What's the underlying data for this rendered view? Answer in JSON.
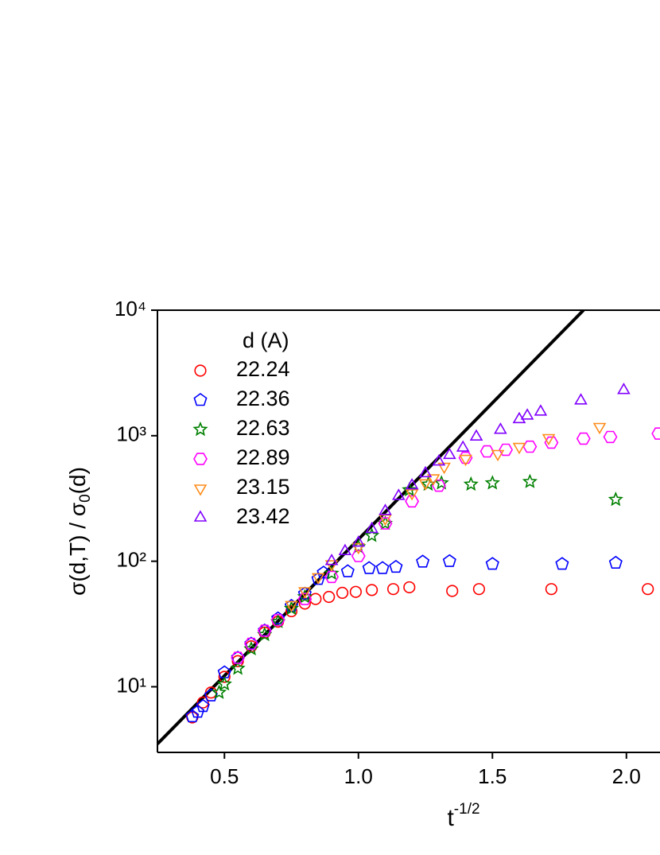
{
  "chart_data": {
    "type": "scatter",
    "x_label": {
      "base": "t",
      "sup": "-1/2"
    },
    "y_label": {
      "pre": "σ(d,T) / σ",
      "sub": "0",
      "post": "(d)"
    },
    "legend_title": "d (A)",
    "legend_position": "upper-left",
    "y_log": true,
    "xlim": [
      0.25,
      2.25
    ],
    "ylim": [
      3,
      10000
    ],
    "xticks": [
      0.5,
      {
        "value": 1,
        "label": "1.0"
      },
      1.5,
      {
        "value": 2,
        "label": "2.0"
      }
    ],
    "yticks": [
      {
        "value": 10,
        "label": "10¹"
      },
      {
        "value": 100,
        "label": "10²"
      },
      {
        "value": 1000,
        "label": "10³"
      },
      {
        "value": 10000,
        "label": "10⁴"
      }
    ],
    "fit_line": {
      "x": [
        0.25,
        1.84
      ],
      "values": [
        3.5,
        10000
      ],
      "color": "#000000"
    },
    "series": [
      {
        "name": "22.24",
        "color": "#ff0000",
        "marker": "circle",
        "x": [
          0.38,
          0.42,
          0.45,
          0.5,
          0.55,
          0.6,
          0.65,
          0.7,
          0.75,
          0.8,
          0.84,
          0.89,
          0.94,
          0.99,
          1.05,
          1.13,
          1.19,
          1.35,
          1.45,
          1.72,
          2.08
        ],
        "values": [
          5.7,
          7.5,
          9,
          12,
          16,
          21,
          27,
          33,
          40,
          46,
          50,
          52,
          56,
          57,
          59,
          60,
          62,
          58,
          60,
          60,
          60
        ]
      },
      {
        "name": "22.36",
        "color": "#0000ff",
        "marker": "pentagon",
        "x": [
          0.38,
          0.4,
          0.42,
          0.45,
          0.5,
          0.55,
          0.6,
          0.65,
          0.7,
          0.75,
          0.8,
          0.85,
          0.87,
          0.96,
          1.04,
          1.09,
          1.14,
          1.24,
          1.34,
          1.5,
          1.76,
          1.96
        ],
        "values": [
          5.8,
          6.3,
          7,
          8.5,
          13,
          17,
          22,
          28,
          35,
          44,
          55,
          72,
          81,
          83,
          88,
          88,
          90,
          99,
          100,
          95,
          95,
          97
        ]
      },
      {
        "name": "22.63",
        "color": "#008000",
        "marker": "star",
        "x": [
          0.48,
          0.5,
          0.55,
          0.6,
          0.65,
          0.7,
          0.75,
          0.8,
          0.9,
          1.0,
          1.05,
          1.1,
          1.19,
          1.26,
          1.31,
          1.42,
          1.5,
          1.64,
          1.96
        ],
        "values": [
          9,
          10.5,
          14,
          20,
          26,
          33,
          42,
          52,
          80,
          130,
          160,
          200,
          370,
          410,
          420,
          410,
          420,
          430,
          310
        ]
      },
      {
        "name": "22.89",
        "color": "#ff00ff",
        "marker": "hexagon",
        "x": [
          0.55,
          0.6,
          0.65,
          0.7,
          0.8,
          0.9,
          1.0,
          1.1,
          1.2,
          1.3,
          1.4,
          1.48,
          1.55,
          1.64,
          1.72,
          1.84,
          1.94,
          2.12
        ],
        "values": [
          17,
          22,
          28,
          34,
          50,
          75,
          110,
          200,
          300,
          400,
          667,
          750,
          773,
          818,
          881,
          948,
          977,
          1040
        ]
      },
      {
        "name": "23.15",
        "color": "#ff8c1a",
        "marker": "triangle-down",
        "x": [
          0.75,
          0.8,
          0.85,
          0.9,
          1.0,
          1.1,
          1.2,
          1.25,
          1.28,
          1.32,
          1.4,
          1.52,
          1.6,
          1.71,
          1.9
        ],
        "values": [
          45,
          58,
          75,
          95,
          130,
          220,
          350,
          420,
          460,
          568,
          657,
          718,
          818,
          962,
          1180
        ]
      },
      {
        "name": "23.42",
        "color": "#8000ff",
        "marker": "triangle-up",
        "x": [
          0.9,
          0.95,
          1.0,
          1.05,
          1.1,
          1.15,
          1.2,
          1.25,
          1.3,
          1.34,
          1.39,
          1.44,
          1.53,
          1.6,
          1.63,
          1.68,
          1.83,
          1.99
        ],
        "values": [
          100,
          120,
          140,
          180,
          250,
          330,
          400,
          500,
          620,
          700,
          800,
          980,
          1110,
          1350,
          1440,
          1550,
          1900,
          2300
        ]
      }
    ]
  }
}
